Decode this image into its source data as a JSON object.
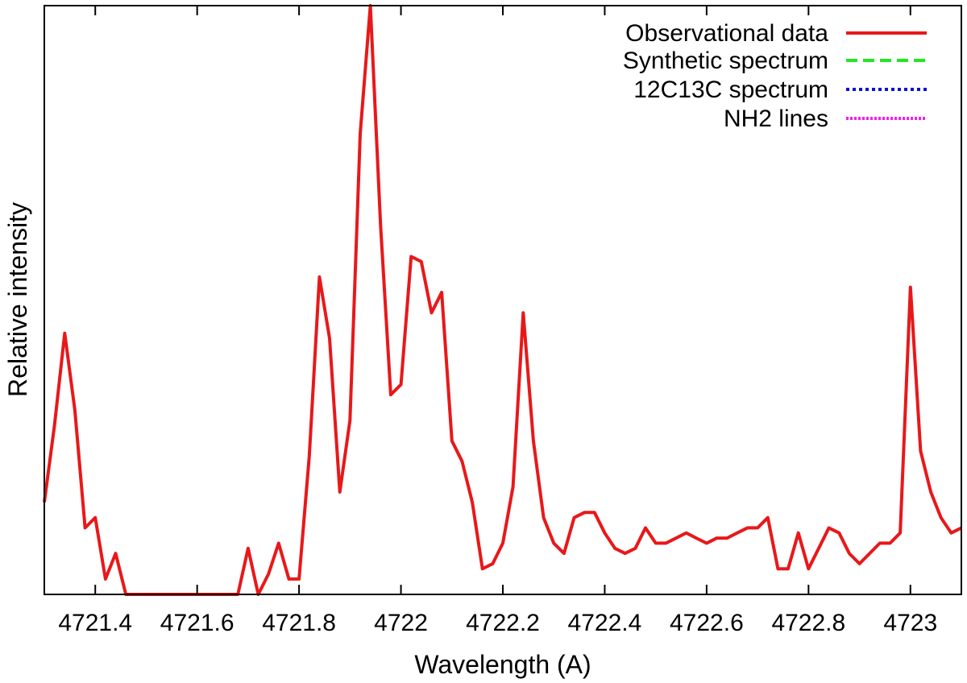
{
  "chart_data": {
    "type": "line",
    "title": "",
    "xlabel": "Wavelength (A)",
    "ylabel": "Relative intensity",
    "xlim": [
      4721.3,
      4723.1
    ],
    "ylim": [
      0,
      1.15
    ],
    "grid": false,
    "legend_position": "top-right",
    "x_ticks": [
      4721.4,
      4721.6,
      4721.8,
      4722.0,
      4722.2,
      4722.4,
      4722.6,
      4722.8,
      4723.0
    ],
    "x_tick_labels": [
      "4721.4",
      "4721.6",
      "4721.8",
      "4722",
      "4722.2",
      "4722.4",
      "4722.6",
      "4722.8",
      "4723"
    ],
    "series": [
      {
        "name": "Observational data",
        "color": "#e8181a",
        "dash": "solid",
        "x": [
          4721.3,
          4721.32,
          4721.34,
          4721.36,
          4721.38,
          4721.4,
          4721.42,
          4721.44,
          4721.46,
          4721.48,
          4721.5,
          4721.52,
          4721.54,
          4721.56,
          4721.58,
          4721.6,
          4721.62,
          4721.64,
          4721.66,
          4721.68,
          4721.7,
          4721.72,
          4721.74,
          4721.76,
          4721.78,
          4721.8,
          4721.82,
          4721.84,
          4721.86,
          4721.88,
          4721.9,
          4721.92,
          4721.94,
          4721.96,
          4721.98,
          4722.0,
          4722.02,
          4722.04,
          4722.06,
          4722.08,
          4722.1,
          4722.12,
          4722.14,
          4722.16,
          4722.18,
          4722.2,
          4722.22,
          4722.24,
          4722.26,
          4722.28,
          4722.3,
          4722.32,
          4722.34,
          4722.36,
          4722.38,
          4722.4,
          4722.42,
          4722.44,
          4722.46,
          4722.48,
          4722.5,
          4722.52,
          4722.54,
          4722.56,
          4722.58,
          4722.6,
          4722.62,
          4722.64,
          4722.66,
          4722.68,
          4722.7,
          4722.72,
          4722.74,
          4722.76,
          4722.78,
          4722.8,
          4722.82,
          4722.84,
          4722.86,
          4722.88,
          4722.9,
          4722.92,
          4722.94,
          4722.96,
          4722.98,
          4723.0,
          4723.02,
          4723.04,
          4723.06,
          4723.08,
          4723.1
        ],
        "y": [
          0.18,
          0.33,
          0.51,
          0.36,
          0.13,
          0.15,
          0.03,
          0.08,
          0.0,
          0.0,
          0.0,
          0.0,
          0.0,
          0.0,
          0.0,
          0.0,
          0.0,
          0.0,
          0.0,
          0.0,
          0.09,
          0.0,
          0.04,
          0.1,
          0.03,
          0.03,
          0.27,
          0.62,
          0.5,
          0.2,
          0.34,
          0.9,
          1.15,
          0.72,
          0.39,
          0.41,
          0.66,
          0.65,
          0.55,
          0.59,
          0.3,
          0.26,
          0.18,
          0.05,
          0.06,
          0.1,
          0.21,
          0.55,
          0.3,
          0.15,
          0.1,
          0.08,
          0.15,
          0.16,
          0.16,
          0.12,
          0.09,
          0.08,
          0.09,
          0.13,
          0.1,
          0.1,
          0.11,
          0.12,
          0.11,
          0.1,
          0.11,
          0.11,
          0.12,
          0.13,
          0.13,
          0.15,
          0.05,
          0.05,
          0.12,
          0.05,
          0.09,
          0.13,
          0.12,
          0.08,
          0.06,
          0.08,
          0.1,
          0.1,
          0.12,
          0.6,
          0.28,
          0.2,
          0.15,
          0.12,
          0.13
        ]
      },
      {
        "name": "Synthetic spectrum",
        "color": "#22e622",
        "dash": "dashed",
        "x": [],
        "y": []
      },
      {
        "name": "12C13C spectrum",
        "color": "#1010d0",
        "dash": "dotted-dense",
        "x": [],
        "y": []
      },
      {
        "name": "NH2 lines",
        "color": "#e826e8",
        "dash": "dotted",
        "x": [],
        "y": []
      }
    ]
  }
}
